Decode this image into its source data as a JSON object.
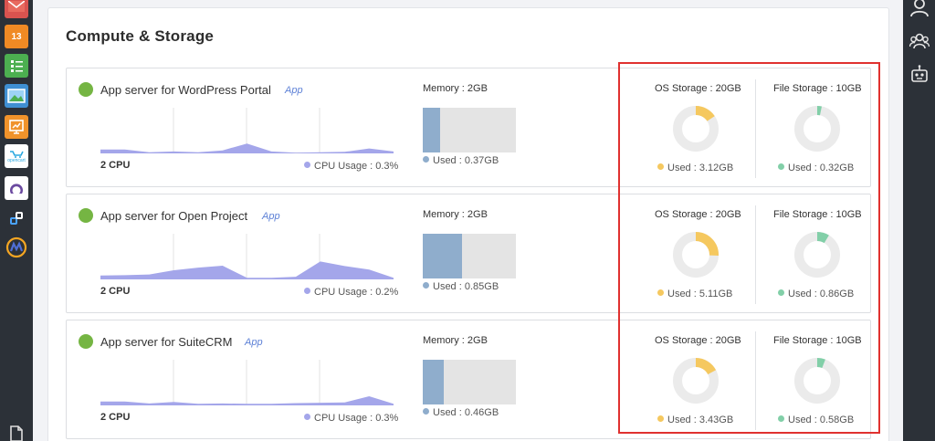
{
  "page": {
    "title": "Compute & Storage"
  },
  "left_apps": [
    {
      "icon": "mail-icon",
      "label": ""
    },
    {
      "icon": "calendar-icon",
      "label": "13"
    },
    {
      "icon": "checklist-icon",
      "label": ""
    },
    {
      "icon": "photos-icon",
      "label": ""
    },
    {
      "icon": "presentation-icon",
      "label": ""
    },
    {
      "icon": "opencart-icon",
      "label": "opencart"
    },
    {
      "icon": "crescent-icon",
      "label": ""
    },
    {
      "icon": "link-icon",
      "label": ""
    },
    {
      "icon": "mautic-icon",
      "label": ""
    }
  ],
  "right_icons": [
    "user-icon",
    "team-icon",
    "robot-icon"
  ],
  "colors": {
    "status_online": "#75b543",
    "cpu": "#a4a6ea",
    "memory": "#8fadcc",
    "os_storage": "#f5c85f",
    "file_storage": "#82cfa8",
    "donut_track": "#ebebeb",
    "highlight": "#e0312f"
  },
  "servers": [
    {
      "name": "App server for WordPress Portal",
      "tag": "App",
      "cpu_label": "2 CPU",
      "cpu_usage": "CPU Usage : 0.3%",
      "cpu_series": [
        1.0,
        1.0,
        0.3,
        0.5,
        0.3,
        0.8,
        2.6,
        0.5,
        0.2,
        0.3,
        0.4,
        1.3,
        0.5
      ],
      "memory_label": "Memory : 2GB",
      "memory_used_text": "Used : 0.37GB",
      "memory_fraction": 0.185,
      "os_storage_label": "OS Storage : 20GB",
      "os_used_text": "Used : 3.12GB",
      "os_fraction": 0.156,
      "file_storage_label": "File Storage : 10GB",
      "file_used_text": "Used : 0.32GB",
      "file_fraction": 0.032
    },
    {
      "name": "App server for Open Project",
      "tag": "App",
      "cpu_label": "2 CPU",
      "cpu_usage": "CPU Usage : 0.2%",
      "cpu_series": [
        1.0,
        1.1,
        1.3,
        2.4,
        3.1,
        3.6,
        0.4,
        0.4,
        0.7,
        4.7,
        3.5,
        2.6,
        0.4
      ],
      "memory_label": "Memory : 2GB",
      "memory_used_text": "Used : 0.85GB",
      "memory_fraction": 0.425,
      "os_storage_label": "OS Storage : 20GB",
      "os_used_text": "Used : 5.11GB",
      "os_fraction": 0.256,
      "file_storage_label": "File Storage : 10GB",
      "file_used_text": "Used : 0.86GB",
      "file_fraction": 0.086
    },
    {
      "name": "App server for SuiteCRM",
      "tag": "App",
      "cpu_label": "2 CPU",
      "cpu_usage": "CPU Usage : 0.3%",
      "cpu_series": [
        1.0,
        1.0,
        0.5,
        0.9,
        0.4,
        0.5,
        0.4,
        0.4,
        0.6,
        0.7,
        0.8,
        2.4,
        0.4
      ],
      "memory_label": "Memory : 2GB",
      "memory_used_text": "Used : 0.46GB",
      "memory_fraction": 0.23,
      "os_storage_label": "OS Storage : 20GB",
      "os_used_text": "Used : 3.43GB",
      "os_fraction": 0.172,
      "file_storage_label": "File Storage : 10GB",
      "file_used_text": "Used : 0.58GB",
      "file_fraction": 0.058
    }
  ]
}
